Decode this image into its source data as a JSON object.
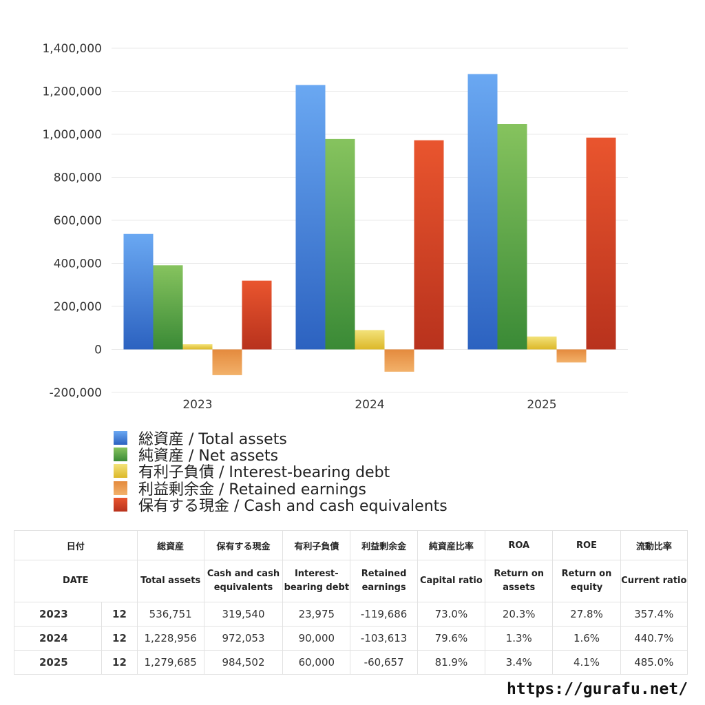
{
  "chart_data": {
    "type": "bar",
    "categories": [
      "2023",
      "2024",
      "2025"
    ],
    "series": [
      {
        "name": "総資産 / Total assets",
        "values": [
          536751,
          1228956,
          1279685
        ],
        "color_top": "#6aa8f2",
        "color_bottom": "#2c62c0"
      },
      {
        "name": "純資産 / Net assets",
        "values": [
          391000,
          978000,
          1048000
        ],
        "color_top": "#86c35e",
        "color_bottom": "#3a8a36"
      },
      {
        "name": "有利子負債 / Interest-bearing debt",
        "values": [
          23975,
          90000,
          60000
        ],
        "color_top": "#f3e27a",
        "color_bottom": "#dcb829"
      },
      {
        "name": "利益剰余金 / Retained earnings",
        "values": [
          -119686,
          -103613,
          -60657
        ],
        "color_top": "#e48a3d",
        "color_bottom": "#f2b16a"
      },
      {
        "name": "保有する現金 /  Cash and cash equivalents",
        "values": [
          319540,
          972053,
          984502
        ],
        "color_top": "#e9552e",
        "color_bottom": "#b8321d"
      }
    ],
    "ylim": [
      -200000,
      1400000
    ],
    "yticks": [
      "1,400,000",
      "1,200,000",
      "1,000,000",
      "800,000",
      "600,000",
      "400,000",
      "200,000",
      "0",
      "-200,000"
    ],
    "grid": true,
    "legend_position": "bottom-left"
  },
  "table": {
    "headers_jp": [
      "日付",
      "総資産",
      "保有する現金",
      "有利子負債",
      "利益剰余金",
      "純資産比率",
      "ROA",
      "ROE",
      "流動比率"
    ],
    "headers_en": [
      "DATE",
      "Total assets",
      "Cash and cash equivalents",
      "Interest-bearing debt",
      "Retained earnings",
      "Capital ratio",
      "Return on assets",
      "Return on equity",
      "Current ratio"
    ],
    "rows": [
      {
        "year": "2023",
        "month": "12",
        "total_assets": "536,751",
        "cash": "319,540",
        "debt": "23,975",
        "retained": "-119,686",
        "capital_ratio": "73.0%",
        "roa": "20.3%",
        "roe": "27.8%",
        "current_ratio": "357.4%"
      },
      {
        "year": "2024",
        "month": "12",
        "total_assets": "1,228,956",
        "cash": "972,053",
        "debt": "90,000",
        "retained": "-103,613",
        "capital_ratio": "79.6%",
        "roa": "1.3%",
        "roe": "1.6%",
        "current_ratio": "440.7%"
      },
      {
        "year": "2025",
        "month": "12",
        "total_assets": "1,279,685",
        "cash": "984,502",
        "debt": "60,000",
        "retained": "-60,657",
        "capital_ratio": "81.9%",
        "roa": "3.4%",
        "roe": "4.1%",
        "current_ratio": "485.0%"
      }
    ],
    "negative_color": "#d9482b"
  },
  "footer": {
    "site": "https://gurafu.net/"
  }
}
